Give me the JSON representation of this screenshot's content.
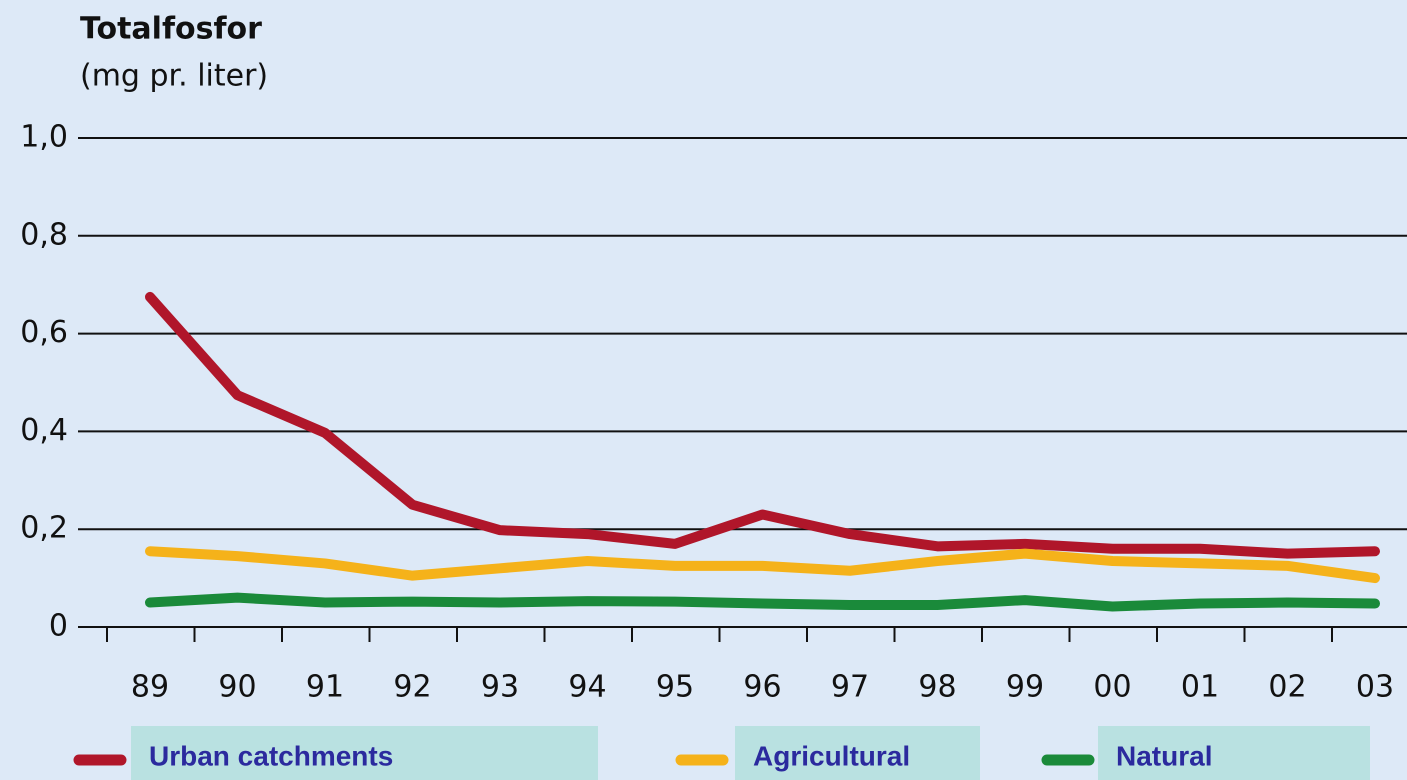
{
  "chart_data": {
    "type": "line",
    "title": "Totalfosfor",
    "subtitle": "(mg pr. liter)",
    "categories": [
      "89",
      "90",
      "91",
      "92",
      "93",
      "94",
      "95",
      "96",
      "97",
      "98",
      "99",
      "00",
      "01",
      "02",
      "03"
    ],
    "series": [
      {
        "name": "Urban catchments",
        "color": "#b0162a",
        "values": [
          0.675,
          0.474,
          0.397,
          0.25,
          0.198,
          0.19,
          0.17,
          0.23,
          0.19,
          0.165,
          0.17,
          0.16,
          0.16,
          0.15,
          0.155
        ]
      },
      {
        "name": "Agricultural",
        "color": "#f5b21a",
        "values": [
          0.155,
          0.145,
          0.13,
          0.105,
          0.12,
          0.135,
          0.125,
          0.125,
          0.115,
          0.135,
          0.15,
          0.135,
          0.13,
          0.125,
          0.1
        ]
      },
      {
        "name": "Natural",
        "color": "#1a8a3a",
        "values": [
          0.05,
          0.06,
          0.05,
          0.052,
          0.05,
          0.053,
          0.052,
          0.048,
          0.045,
          0.045,
          0.055,
          0.042,
          0.048,
          0.05,
          0.048
        ]
      }
    ],
    "ylim": [
      0,
      1
    ],
    "yticks": [
      0,
      {
        "value": 0.2,
        "label": "0,2"
      },
      {
        "value": 0.4,
        "label": "0,4"
      },
      {
        "value": 0.6,
        "label": "0,6"
      },
      {
        "value": 0.8,
        "label": "0,8"
      },
      {
        "value": 1,
        "label": "1,0"
      }
    ],
    "grid": true,
    "legend": "bottom"
  }
}
